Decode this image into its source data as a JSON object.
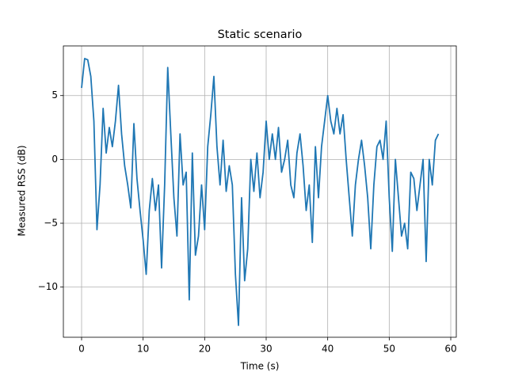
{
  "chart_data": {
    "type": "line",
    "title": "Static scenario",
    "xlabel": "Time (s)",
    "ylabel": "Measured RSS (dB)",
    "x": [
      0,
      0.5,
      1,
      1.5,
      2,
      2.5,
      3,
      3.5,
      4,
      4.5,
      5,
      5.5,
      6,
      6.5,
      7,
      7.5,
      8,
      8.5,
      9,
      9.5,
      10,
      10.5,
      11,
      11.5,
      12,
      12.5,
      13,
      13.5,
      14,
      14.5,
      15,
      15.5,
      16,
      16.5,
      17,
      17.5,
      18,
      18.5,
      19,
      19.5,
      20,
      20.5,
      21,
      21.5,
      22,
      22.5,
      23,
      23.5,
      24,
      24.5,
      25,
      25.5,
      26,
      26.5,
      27,
      27.5,
      28,
      28.5,
      29,
      29.5,
      30,
      30.5,
      31,
      31.5,
      32,
      32.5,
      33,
      33.5,
      34,
      34.5,
      35,
      35.5,
      36,
      36.5,
      37,
      37.5,
      38,
      38.5,
      39,
      39.5,
      40,
      40.5,
      41,
      41.5,
      42,
      42.5,
      43,
      43.5,
      44,
      44.5,
      45,
      45.5,
      46,
      46.5,
      47,
      47.5,
      48,
      48.5,
      49,
      49.5,
      50,
      50.5,
      51,
      51.5,
      52,
      52.5,
      53,
      53.5,
      54,
      54.5,
      55,
      55.5,
      56,
      56.5,
      57,
      57.5,
      58
    ],
    "series": [
      {
        "name": "RSS",
        "color": "#1f77b4",
        "values": [
          5.6,
          7.9,
          7.8,
          6.5,
          3,
          -5.5,
          -2,
          4,
          0.5,
          2.5,
          1,
          3,
          5.8,
          2,
          -0.5,
          -2,
          -3.8,
          2.8,
          -1.5,
          -4,
          -6.3,
          -9,
          -4,
          -1.5,
          -4,
          -2,
          -8.5,
          -2,
          7.2,
          2,
          -3,
          -6,
          2,
          -2,
          -1,
          -11,
          0.5,
          -7.5,
          -6,
          -2,
          -5.5,
          1,
          3.5,
          6.5,
          1,
          -2,
          1.5,
          -2.5,
          -0.5,
          -2,
          -9,
          -13,
          -3,
          -9.5,
          -7,
          0,
          -2.5,
          0.5,
          -3,
          -1,
          3,
          0,
          2,
          0,
          2.5,
          -1,
          0,
          1.5,
          -2,
          -3,
          0.5,
          2,
          -0.5,
          -4,
          -2,
          -6.5,
          1,
          -3,
          1,
          3,
          5,
          3,
          2,
          4,
          2,
          3.5,
          0,
          -3,
          -6,
          -2,
          0,
          1.5,
          -0.5,
          -3,
          -7,
          -2,
          1,
          1.5,
          0,
          3,
          -3,
          -7.2,
          0,
          -3,
          -6,
          -5,
          -7,
          -1,
          -1.5,
          -4,
          -2,
          0,
          -8,
          0,
          -2,
          1.5,
          2
        ]
      }
    ],
    "xlim": [
      -2.96,
      60.9
    ],
    "ylim": [
      -13.93,
      8.89
    ],
    "xticks": [
      0,
      10,
      20,
      30,
      40,
      50,
      60
    ],
    "yticks": [
      {
        "value": -10,
        "label": "−10"
      },
      {
        "value": -5,
        "label": "−5"
      },
      0,
      5
    ],
    "grid": true
  }
}
